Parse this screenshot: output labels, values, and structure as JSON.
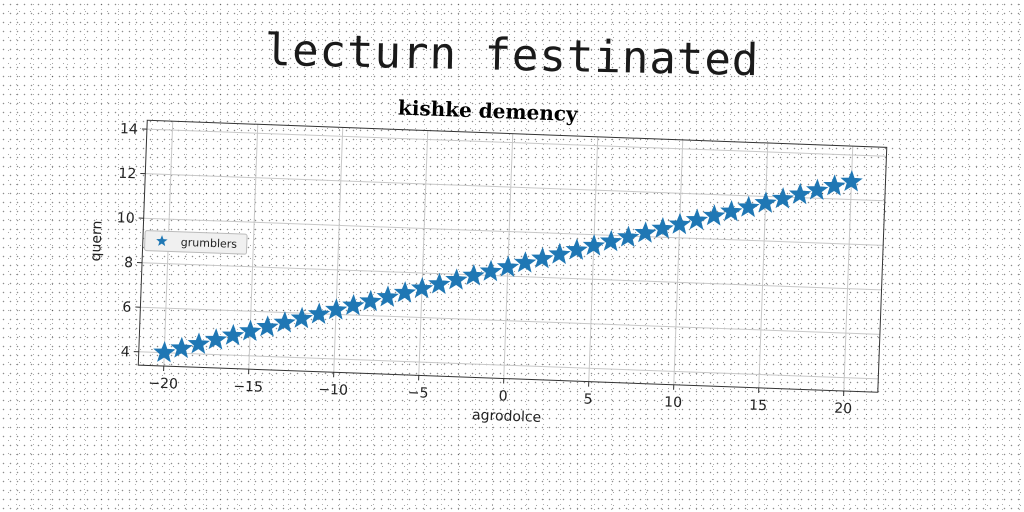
{
  "page_title": "lecturn festinated",
  "chart_data": {
    "type": "scatter",
    "title": "kishke demency",
    "xlabel": "agrodolce",
    "ylabel": "quern",
    "xlim": [
      -21.5,
      22
    ],
    "ylim": [
      3.4,
      14.4
    ],
    "xticks": [
      -20,
      -15,
      -10,
      -5,
      0,
      5,
      10,
      15,
      20
    ],
    "yticks": [
      4,
      6,
      8,
      10,
      12,
      14
    ],
    "grid": true,
    "legend_position": "center-left",
    "marker": "star",
    "color": "#1f77b4",
    "series": [
      {
        "name": "grumblers",
        "x": [
          -20.0,
          -19.0,
          -18.0,
          -17.0,
          -16.0,
          -15.0,
          -14.0,
          -13.0,
          -12.0,
          -11.0,
          -10.0,
          -9.0,
          -8.0,
          -7.0,
          -6.0,
          -5.0,
          -4.0,
          -3.0,
          -2.0,
          -1.0,
          0.0,
          1.0,
          2.0,
          3.0,
          4.0,
          5.0,
          6.0,
          7.0,
          8.0,
          9.0,
          10.0,
          11.0,
          12.0,
          13.0,
          14.0,
          15.0,
          16.0,
          17.0,
          18.0,
          19.0,
          20.0
        ],
        "y": [
          4.0,
          4.22,
          4.44,
          4.66,
          4.88,
          5.1,
          5.32,
          5.54,
          5.76,
          5.98,
          6.2,
          6.42,
          6.64,
          6.86,
          7.08,
          7.3,
          7.52,
          7.74,
          7.96,
          8.18,
          8.4,
          8.62,
          8.84,
          9.06,
          9.28,
          9.5,
          9.72,
          9.94,
          10.16,
          10.38,
          10.6,
          10.82,
          11.04,
          11.26,
          11.48,
          11.7,
          11.92,
          12.14,
          12.36,
          12.58,
          12.8
        ]
      }
    ]
  }
}
